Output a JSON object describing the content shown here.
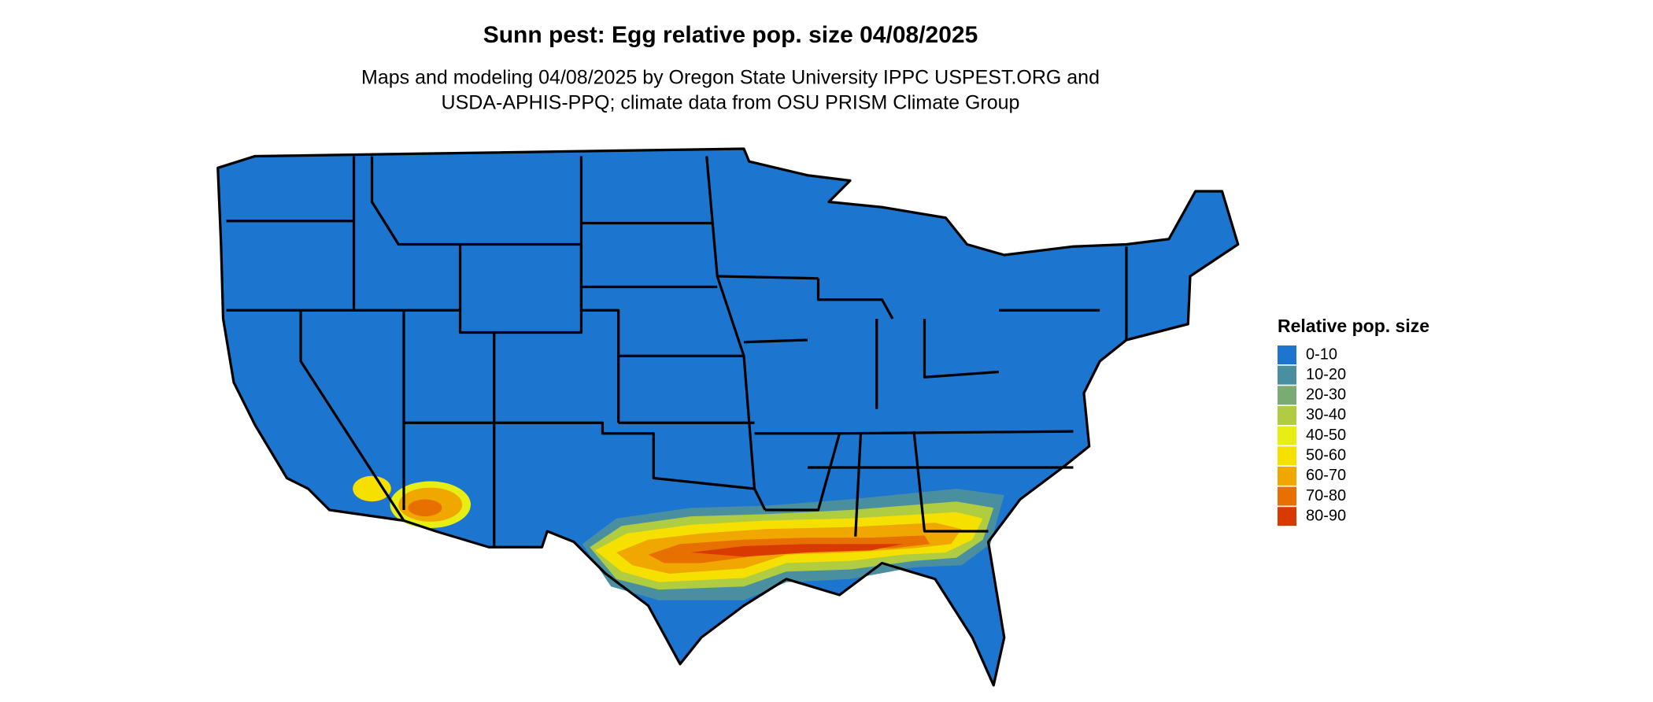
{
  "title": "Sunn pest: Egg relative pop. size 04/08/2025",
  "subtitle": [
    "Maps and modeling 04/08/2025 by Oregon State University IPPC USPEST.ORG and",
    "USDA-APHIS-PPQ; climate data from OSU PRISM Climate Group"
  ],
  "legend": {
    "title": "Relative pop. size",
    "items": [
      {
        "label": "0-10",
        "color": "#1c75cf"
      },
      {
        "label": "10-20",
        "color": "#4a8fa0"
      },
      {
        "label": "20-30",
        "color": "#7aab72"
      },
      {
        "label": "30-40",
        "color": "#b0cc40"
      },
      {
        "label": "40-50",
        "color": "#e6ee14"
      },
      {
        "label": "50-60",
        "color": "#f5e000"
      },
      {
        "label": "60-70",
        "color": "#f0a800"
      },
      {
        "label": "70-80",
        "color": "#e87000"
      },
      {
        "label": "80-90",
        "color": "#d83a00"
      }
    ]
  }
}
